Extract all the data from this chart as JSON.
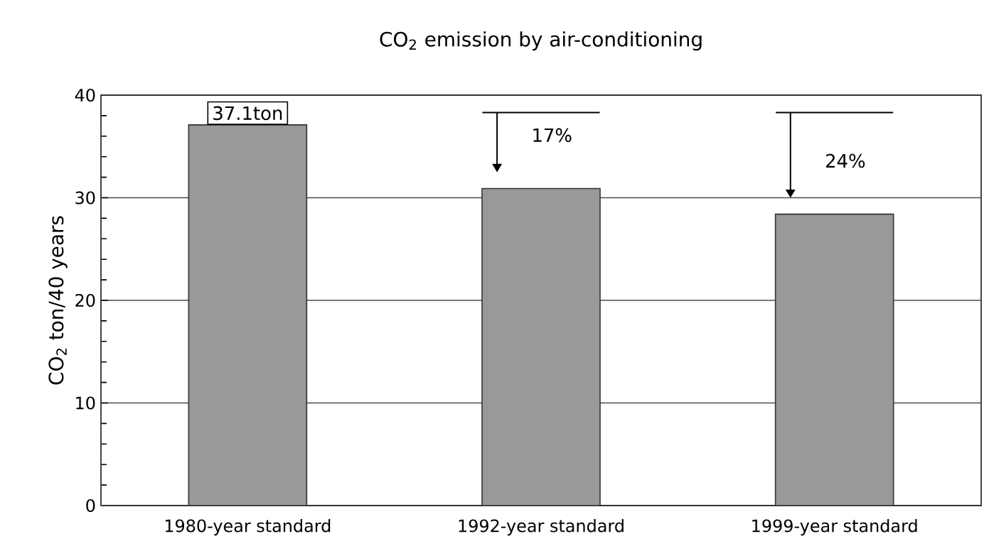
{
  "chart_data": {
    "type": "bar",
    "title": "CO$_{2}$ emission by air-conditioning",
    "ylabel": "CO$_{2}$ ton/40 years",
    "categories": [
      "1980-year standard",
      "1992-year standard",
      "1999-year standard"
    ],
    "values": [
      37.1,
      30.9,
      28.4
    ],
    "color": "#999999",
    "ylim": [
      0,
      40
    ],
    "yticks": [
      0,
      10,
      20,
      30,
      40
    ],
    "grid": "y",
    "annotations": [
      {
        "text": "37.1ton",
        "x": "1980-year standard",
        "y": 37.1
      },
      {
        "text": "17%",
        "x": "1992-year standard",
        "y": 30.9
      },
      {
        "text": "24%",
        "x": "1999-year standard",
        "y": 28.4
      }
    ]
  }
}
